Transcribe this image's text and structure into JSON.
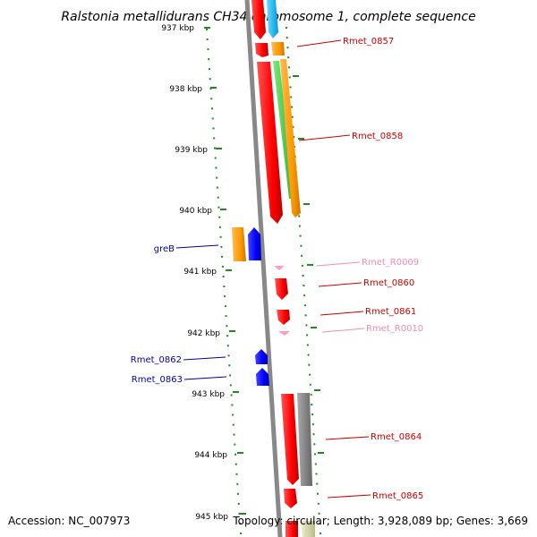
{
  "title": "Ralstonia metallidurans CH34 chromosome 1, complete sequence",
  "footer": {
    "accession": "Accession: NC_007973",
    "topology": "Topology: circular; Length: 3,928,089 bp; Genes: 3,669"
  },
  "scale": {
    "ticks": [
      "937 kbp",
      "938 kbp",
      "939 kbp",
      "940 kbp",
      "941 kbp",
      "942 kbp",
      "943 kbp",
      "944 kbp",
      "945 kbp"
    ]
  },
  "genes": {
    "right": [
      {
        "name": "Rmet_0857",
        "color": "#cc0000"
      },
      {
        "name": "Rmet_0858",
        "color": "#cc0000"
      },
      {
        "name": "Rmet_R0009",
        "color": "#f08cb4"
      },
      {
        "name": "Rmet_0860",
        "color": "#cc0000"
      },
      {
        "name": "Rmet_0861",
        "color": "#cc0000"
      },
      {
        "name": "Rmet_R0010",
        "color": "#f08cb4"
      },
      {
        "name": "Rmet_0864",
        "color": "#cc0000"
      },
      {
        "name": "Rmet_0865",
        "color": "#cc0000"
      }
    ],
    "left": [
      {
        "name": "greB",
        "color": "#0000aa"
      },
      {
        "name": "Rmet_0862",
        "color": "#0000aa"
      },
      {
        "name": "Rmet_0863",
        "color": "#0000aa"
      }
    ]
  },
  "colors": {
    "protein_gene": "#ff0000",
    "rna_gene": "#ff99cc",
    "reverse_gene": "#0000ff",
    "backbone": "#888888",
    "scale_dots": "#228822"
  }
}
